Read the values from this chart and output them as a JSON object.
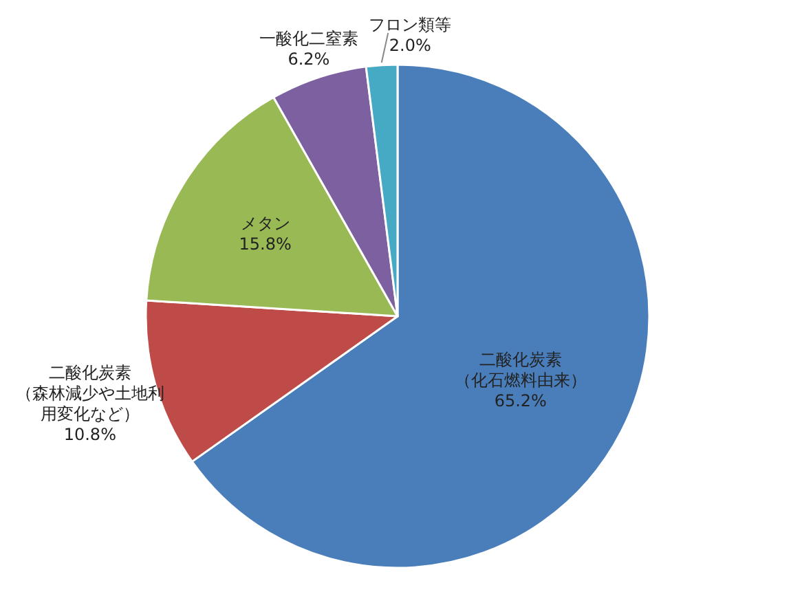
{
  "chart_data": {
    "type": "pie",
    "categories": [
      "二酸化炭素（化石燃料由来）",
      "二酸化炭素（森林減少や土地利用変化など）",
      "メタン",
      "一酸化二窒素",
      "フロン類等"
    ],
    "values": [
      65.2,
      10.8,
      15.8,
      6.2,
      2.0
    ],
    "value_labels": [
      "65.2%",
      "10.8%",
      "15.8%",
      "6.2%",
      "2.0%"
    ],
    "colors": [
      "#4a7ebb",
      "#be4b48",
      "#98b954",
      "#7d60a0",
      "#46aac5"
    ]
  }
}
